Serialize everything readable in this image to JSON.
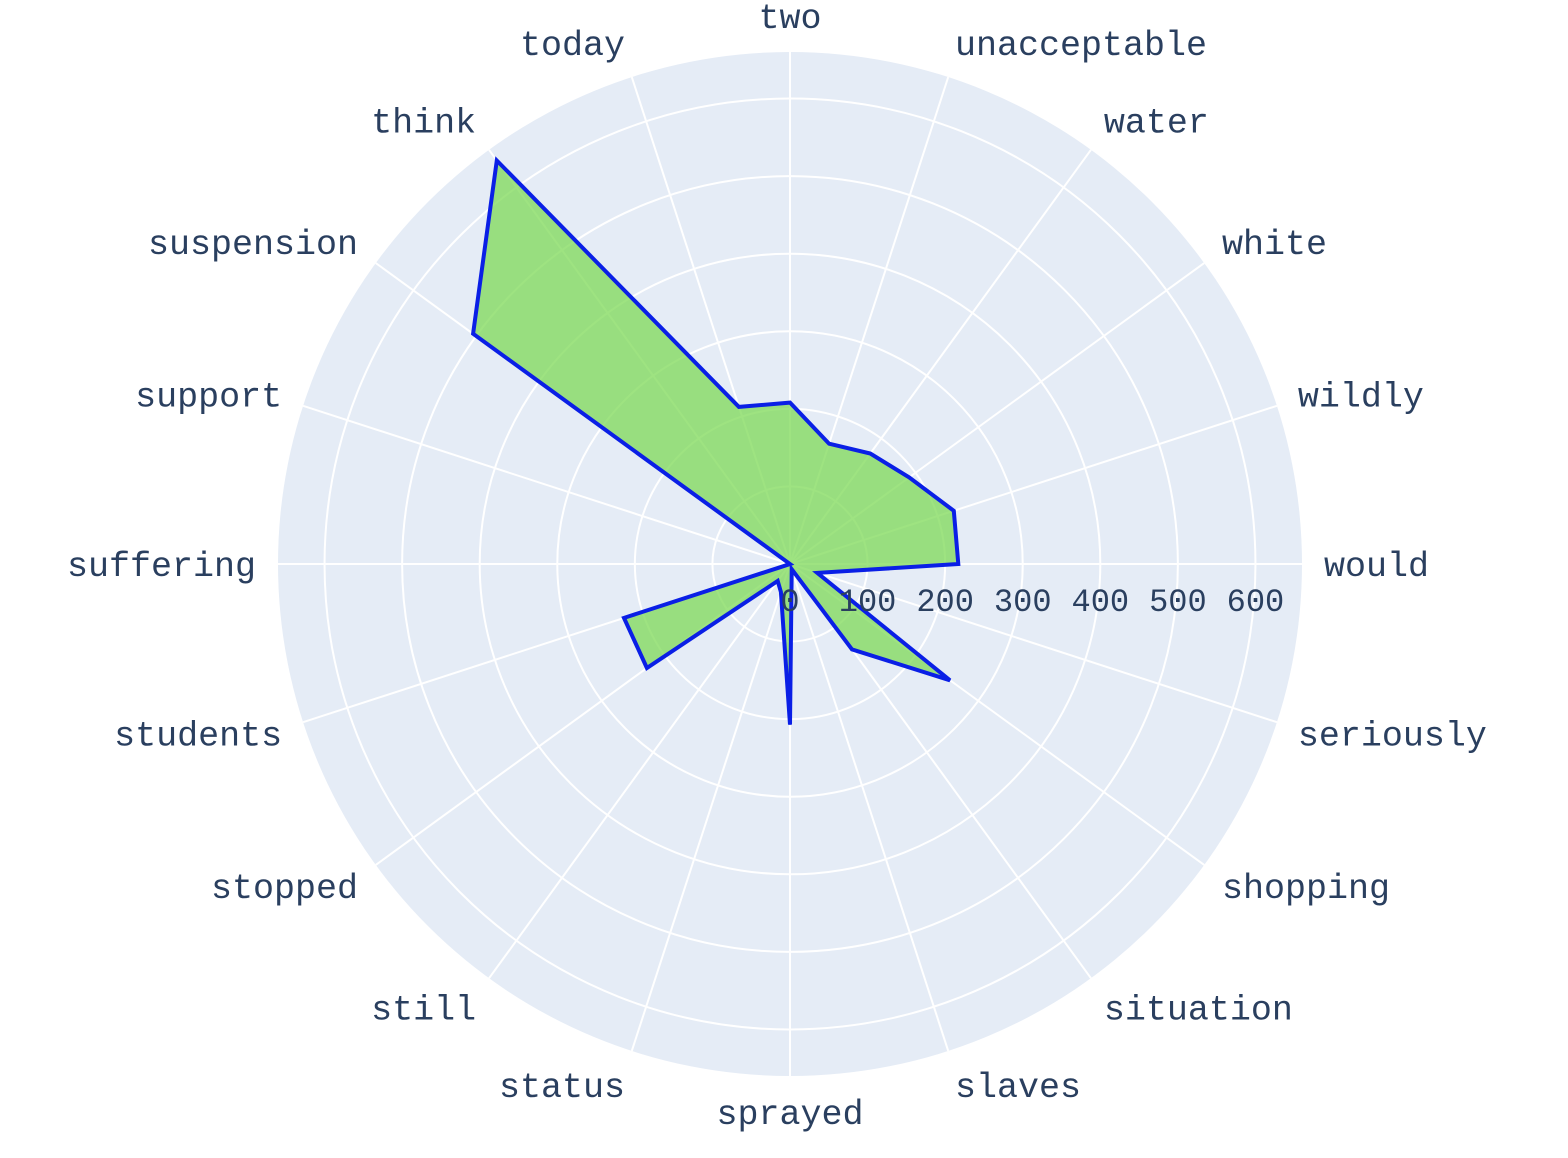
{
  "chart_data": {
    "type": "radar",
    "categories": [
      "would",
      "wildly",
      "white",
      "water",
      "unacceptable",
      "two",
      "today",
      "think",
      "suspension",
      "support",
      "suffering",
      "students",
      "stopped",
      "still",
      "status",
      "sprayed",
      "slaves",
      "situation",
      "shopping",
      "seriously"
    ],
    "values": [
      217,
      222,
      190,
      176,
      163,
      208,
      213,
      643,
      505,
      0,
      0,
      225,
      228,
      27,
      38,
      207,
      7,
      136,
      255,
      37
    ],
    "radial_range": [
      0,
      660
    ],
    "radial_ticks": [
      "0",
      "100",
      "200",
      "300",
      "400",
      "500",
      "600"
    ],
    "radial_tick_values": [
      0,
      100,
      200,
      300,
      400,
      500,
      600
    ],
    "colors": {
      "plot_background": "#e5ecf6",
      "grid": "#ffffff",
      "fill": "#7ed957",
      "line": "#0a1fe6",
      "text": "#2a3f5f"
    }
  }
}
